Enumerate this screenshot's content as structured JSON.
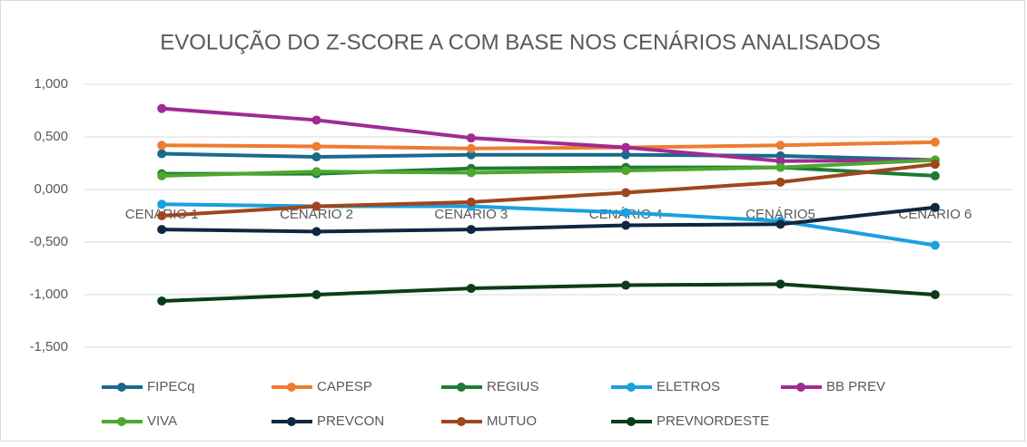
{
  "chart_data": {
    "type": "line",
    "title": "EVOLUÇÃO DO Z-SCORE A COM BASE NOS CENÁRIOS ANALISADOS",
    "categories": [
      "CENÁRIO 1",
      "CENÁRIO 2",
      "CENÁRIO 3",
      "CENÁRIO 4",
      "CENÁRIO5",
      "CENÁRIO 6"
    ],
    "ylim": [
      -1.5,
      1.0
    ],
    "yticks": [
      {
        "value": 1.0,
        "label": "1,000"
      },
      {
        "value": 0.5,
        "label": "0,500"
      },
      {
        "value": 0,
        "label": "0,000"
      },
      {
        "value": -0.5,
        "label": "-0,500"
      },
      {
        "value": -1.0,
        "label": "-1,000"
      },
      {
        "value": -1.5,
        "label": "-1,500"
      }
    ],
    "grid": true,
    "legend": "bottom",
    "series": [
      {
        "name": "FIPECq",
        "color": "#196b8c",
        "values": [
          0.34,
          0.31,
          0.33,
          0.33,
          0.32,
          0.28
        ]
      },
      {
        "name": "CAPESP",
        "color": "#ed7d31",
        "values": [
          0.42,
          0.41,
          0.39,
          0.4,
          0.42,
          0.45
        ]
      },
      {
        "name": "REGIUS",
        "color": "#1e7b34",
        "values": [
          0.15,
          0.15,
          0.2,
          0.21,
          0.21,
          0.13
        ]
      },
      {
        "name": "ELETROS",
        "color": "#1aa0e0",
        "values": [
          -0.14,
          -0.16,
          -0.16,
          -0.22,
          -0.3,
          -0.53
        ]
      },
      {
        "name": "BB PREV",
        "color": "#a02b93",
        "values": [
          0.77,
          0.66,
          0.49,
          0.4,
          0.27,
          0.28
        ]
      },
      {
        "name": "VIVA",
        "color": "#4ea72e",
        "values": [
          0.13,
          0.17,
          0.16,
          0.18,
          0.21,
          0.28
        ]
      },
      {
        "name": "PREVCON",
        "color": "#0e2841",
        "values": [
          -0.38,
          -0.4,
          -0.38,
          -0.34,
          -0.33,
          -0.17
        ]
      },
      {
        "name": "MUTUO",
        "color": "#a0461c",
        "values": [
          -0.25,
          -0.16,
          -0.12,
          -0.03,
          0.07,
          0.24
        ]
      },
      {
        "name": "PREVNORDESTE",
        "color": "#0b3d16",
        "values": [
          -1.06,
          -1.0,
          -0.94,
          -0.91,
          -0.9,
          -1.0
        ]
      }
    ]
  }
}
